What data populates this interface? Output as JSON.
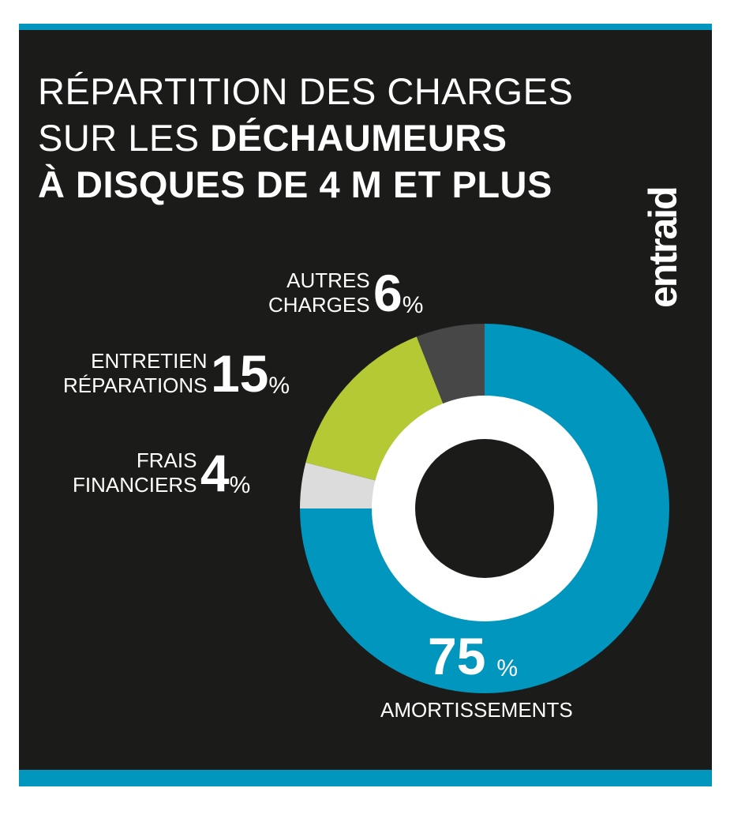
{
  "title": {
    "line1": "RÉPARTITION DES CHARGES",
    "line2_light": "SUR LES ",
    "line2_bold": "DÉCHAUMEURS",
    "line3": "À DISQUES DE 4 M ET PLUS"
  },
  "logo": "entraid",
  "colors": {
    "background": "#1b1b19",
    "accent": "#0096be",
    "amortissements": "#0096be",
    "frais": "#dcdcdc",
    "entretien": "#b5c935",
    "autres": "#474747",
    "inner_ring": "#ffffff",
    "center": "#1b1b19"
  },
  "chart_data": {
    "type": "pie",
    "title": "RÉPARTITION DES CHARGES SUR LES DÉCHAUMEURS À DISQUES DE 4 M ET PLUS",
    "slices": [
      {
        "label": "AMORTISSEMENTS",
        "value": 75,
        "display": "75",
        "color": "#0096be"
      },
      {
        "label": "FRAIS FINANCIERS",
        "value": 4,
        "display": "4",
        "color": "#dcdcdc"
      },
      {
        "label": "ENTRETIEN RÉPARATIONS",
        "value": 15,
        "display": "15",
        "color": "#b5c935"
      },
      {
        "label": "AUTRES CHARGES",
        "value": 6,
        "display": "6",
        "color": "#474747"
      }
    ],
    "unit": "%"
  },
  "labels": {
    "autres": {
      "line1": "AUTRES",
      "line2": "CHARGES",
      "value": "6",
      "unit": "%"
    },
    "entretien": {
      "line1": "ENTRETIEN",
      "line2": "RÉPARATIONS",
      "value": "15",
      "unit": "%"
    },
    "frais": {
      "line1": "FRAIS",
      "line2": "FINANCIERS",
      "value": "4",
      "unit": "%"
    },
    "amort": {
      "name": "AMORTISSEMENTS",
      "value": "75",
      "unit": "%"
    }
  }
}
